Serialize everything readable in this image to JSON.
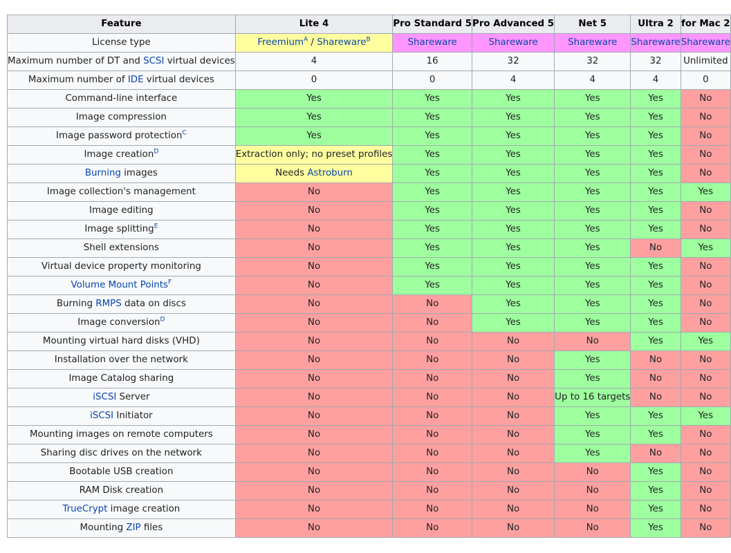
{
  "table": {
    "columns": [
      "Feature",
      "Lite 4",
      "Pro Standard 5",
      "Pro Advanced 5",
      "Net 5",
      "Ultra 2",
      "for Mac 2"
    ],
    "colors": {
      "yes": "#9eff9e",
      "no": "#ffa0a0",
      "partial": "#ffffa0",
      "shareware": "#ff95ff",
      "link": "#0645ad"
    },
    "rows": [
      {
        "feature": [
          {
            "t": "License type"
          }
        ],
        "cells": [
          {
            "s": "partial",
            "parts": [
              {
                "t": "Freemium",
                "link": true
              },
              {
                "t": "A",
                "sup": true
              },
              {
                "t": " / "
              },
              {
                "t": "Shareware",
                "link": true
              },
              {
                "t": "B",
                "sup": true
              }
            ]
          },
          {
            "s": "shareware",
            "parts": [
              {
                "t": "Shareware",
                "link": true
              }
            ]
          },
          {
            "s": "shareware",
            "parts": [
              {
                "t": "Shareware",
                "link": true
              }
            ]
          },
          {
            "s": "shareware",
            "parts": [
              {
                "t": "Shareware",
                "link": true
              }
            ]
          },
          {
            "s": "shareware",
            "parts": [
              {
                "t": "Shareware",
                "link": true
              }
            ]
          },
          {
            "s": "shareware",
            "parts": [
              {
                "t": "Shareware",
                "link": true
              }
            ]
          }
        ]
      },
      {
        "feature": [
          {
            "t": "Maximum number of DT and "
          },
          {
            "t": "SCSI",
            "link": true
          },
          {
            "t": " virtual devices"
          }
        ],
        "cells": [
          {
            "s": "neutral",
            "t": "4"
          },
          {
            "s": "neutral",
            "t": "16"
          },
          {
            "s": "neutral",
            "t": "32"
          },
          {
            "s": "neutral",
            "t": "32"
          },
          {
            "s": "neutral",
            "t": "32"
          },
          {
            "s": "neutral",
            "t": "Unlimited"
          }
        ]
      },
      {
        "feature": [
          {
            "t": "Maximum number of "
          },
          {
            "t": "IDE",
            "link": true
          },
          {
            "t": " virtual devices"
          }
        ],
        "cells": [
          {
            "s": "neutral",
            "t": "0"
          },
          {
            "s": "neutral",
            "t": "0"
          },
          {
            "s": "neutral",
            "t": "4"
          },
          {
            "s": "neutral",
            "t": "4"
          },
          {
            "s": "neutral",
            "t": "4"
          },
          {
            "s": "neutral",
            "t": "0"
          }
        ]
      },
      {
        "feature": [
          {
            "t": "Command-line interface"
          }
        ],
        "cells": [
          {
            "s": "yes",
            "t": "Yes"
          },
          {
            "s": "yes",
            "t": "Yes"
          },
          {
            "s": "yes",
            "t": "Yes"
          },
          {
            "s": "yes",
            "t": "Yes"
          },
          {
            "s": "yes",
            "t": "Yes"
          },
          {
            "s": "no",
            "t": "No"
          }
        ]
      },
      {
        "feature": [
          {
            "t": "Image compression"
          }
        ],
        "cells": [
          {
            "s": "yes",
            "t": "Yes"
          },
          {
            "s": "yes",
            "t": "Yes"
          },
          {
            "s": "yes",
            "t": "Yes"
          },
          {
            "s": "yes",
            "t": "Yes"
          },
          {
            "s": "yes",
            "t": "Yes"
          },
          {
            "s": "no",
            "t": "No"
          }
        ]
      },
      {
        "feature": [
          {
            "t": "Image password protection"
          },
          {
            "t": "C",
            "sup": true
          }
        ],
        "cells": [
          {
            "s": "yes",
            "t": "Yes"
          },
          {
            "s": "yes",
            "t": "Yes"
          },
          {
            "s": "yes",
            "t": "Yes"
          },
          {
            "s": "yes",
            "t": "Yes"
          },
          {
            "s": "yes",
            "t": "Yes"
          },
          {
            "s": "no",
            "t": "No"
          }
        ]
      },
      {
        "feature": [
          {
            "t": "Image creation"
          },
          {
            "t": "D",
            "sup": true
          }
        ],
        "cells": [
          {
            "s": "partial",
            "t": "Extraction only; no preset profiles"
          },
          {
            "s": "yes",
            "t": "Yes"
          },
          {
            "s": "yes",
            "t": "Yes"
          },
          {
            "s": "yes",
            "t": "Yes"
          },
          {
            "s": "yes",
            "t": "Yes"
          },
          {
            "s": "no",
            "t": "No"
          }
        ]
      },
      {
        "feature": [
          {
            "t": "Burning",
            "link": true
          },
          {
            "t": " images"
          }
        ],
        "cells": [
          {
            "s": "partial",
            "parts": [
              {
                "t": "Needs "
              },
              {
                "t": "Astroburn",
                "link": true
              }
            ]
          },
          {
            "s": "yes",
            "t": "Yes"
          },
          {
            "s": "yes",
            "t": "Yes"
          },
          {
            "s": "yes",
            "t": "Yes"
          },
          {
            "s": "yes",
            "t": "Yes"
          },
          {
            "s": "no",
            "t": "No"
          }
        ]
      },
      {
        "feature": [
          {
            "t": "Image collection's management"
          }
        ],
        "cells": [
          {
            "s": "no",
            "t": "No"
          },
          {
            "s": "yes",
            "t": "Yes"
          },
          {
            "s": "yes",
            "t": "Yes"
          },
          {
            "s": "yes",
            "t": "Yes"
          },
          {
            "s": "yes",
            "t": "Yes"
          },
          {
            "s": "yes",
            "t": "Yes"
          }
        ]
      },
      {
        "feature": [
          {
            "t": "Image editing"
          }
        ],
        "cells": [
          {
            "s": "no",
            "t": "No"
          },
          {
            "s": "yes",
            "t": "Yes"
          },
          {
            "s": "yes",
            "t": "Yes"
          },
          {
            "s": "yes",
            "t": "Yes"
          },
          {
            "s": "yes",
            "t": "Yes"
          },
          {
            "s": "no",
            "t": "No"
          }
        ]
      },
      {
        "feature": [
          {
            "t": "Image splitting"
          },
          {
            "t": "E",
            "sup": true
          }
        ],
        "cells": [
          {
            "s": "no",
            "t": "No"
          },
          {
            "s": "yes",
            "t": "Yes"
          },
          {
            "s": "yes",
            "t": "Yes"
          },
          {
            "s": "yes",
            "t": "Yes"
          },
          {
            "s": "yes",
            "t": "Yes"
          },
          {
            "s": "no",
            "t": "No"
          }
        ]
      },
      {
        "feature": [
          {
            "t": "Shell extensions"
          }
        ],
        "cells": [
          {
            "s": "no",
            "t": "No"
          },
          {
            "s": "yes",
            "t": "Yes"
          },
          {
            "s": "yes",
            "t": "Yes"
          },
          {
            "s": "yes",
            "t": "Yes"
          },
          {
            "s": "no",
            "t": "No"
          },
          {
            "s": "yes",
            "t": "Yes"
          }
        ]
      },
      {
        "feature": [
          {
            "t": "Virtual device property monitoring"
          }
        ],
        "cells": [
          {
            "s": "no",
            "t": "No"
          },
          {
            "s": "yes",
            "t": "Yes"
          },
          {
            "s": "yes",
            "t": "Yes"
          },
          {
            "s": "yes",
            "t": "Yes"
          },
          {
            "s": "yes",
            "t": "Yes"
          },
          {
            "s": "no",
            "t": "No"
          }
        ]
      },
      {
        "feature": [
          {
            "t": "Volume Mount Points",
            "link": true
          },
          {
            "t": "F",
            "sup": true
          }
        ],
        "cells": [
          {
            "s": "no",
            "t": "No"
          },
          {
            "s": "yes",
            "t": "Yes"
          },
          {
            "s": "yes",
            "t": "Yes"
          },
          {
            "s": "yes",
            "t": "Yes"
          },
          {
            "s": "yes",
            "t": "Yes"
          },
          {
            "s": "no",
            "t": "No"
          }
        ]
      },
      {
        "feature": [
          {
            "t": "Burning "
          },
          {
            "t": "RMPS",
            "link": true
          },
          {
            "t": " data on discs"
          }
        ],
        "cells": [
          {
            "s": "no",
            "t": "No"
          },
          {
            "s": "no",
            "t": "No"
          },
          {
            "s": "yes",
            "t": "Yes"
          },
          {
            "s": "yes",
            "t": "Yes"
          },
          {
            "s": "yes",
            "t": "Yes"
          },
          {
            "s": "no",
            "t": "No"
          }
        ]
      },
      {
        "feature": [
          {
            "t": "Image conversion"
          },
          {
            "t": "D",
            "sup": true
          }
        ],
        "cells": [
          {
            "s": "no",
            "t": "No"
          },
          {
            "s": "no",
            "t": "No"
          },
          {
            "s": "yes",
            "t": "Yes"
          },
          {
            "s": "yes",
            "t": "Yes"
          },
          {
            "s": "yes",
            "t": "Yes"
          },
          {
            "s": "no",
            "t": "No"
          }
        ]
      },
      {
        "feature": [
          {
            "t": "Mounting virtual hard disks (VHD)"
          }
        ],
        "cells": [
          {
            "s": "no",
            "t": "No"
          },
          {
            "s": "no",
            "t": "No"
          },
          {
            "s": "no",
            "t": "No"
          },
          {
            "s": "no",
            "t": "No"
          },
          {
            "s": "yes",
            "t": "Yes"
          },
          {
            "s": "yes",
            "t": "Yes"
          }
        ]
      },
      {
        "feature": [
          {
            "t": "Installation over the network"
          }
        ],
        "cells": [
          {
            "s": "no",
            "t": "No"
          },
          {
            "s": "no",
            "t": "No"
          },
          {
            "s": "no",
            "t": "No"
          },
          {
            "s": "yes",
            "t": "Yes"
          },
          {
            "s": "no",
            "t": "No"
          },
          {
            "s": "no",
            "t": "No"
          }
        ]
      },
      {
        "feature": [
          {
            "t": "Image Catalog sharing"
          }
        ],
        "cells": [
          {
            "s": "no",
            "t": "No"
          },
          {
            "s": "no",
            "t": "No"
          },
          {
            "s": "no",
            "t": "No"
          },
          {
            "s": "yes",
            "t": "Yes"
          },
          {
            "s": "no",
            "t": "No"
          },
          {
            "s": "no",
            "t": "No"
          }
        ]
      },
      {
        "feature": [
          {
            "t": "iSCSI",
            "link": true
          },
          {
            "t": " Server"
          }
        ],
        "cells": [
          {
            "s": "no",
            "t": "No"
          },
          {
            "s": "no",
            "t": "No"
          },
          {
            "s": "no",
            "t": "No"
          },
          {
            "s": "yes",
            "t": "Up to 16 targets"
          },
          {
            "s": "no",
            "t": "No"
          },
          {
            "s": "no",
            "t": "No"
          }
        ]
      },
      {
        "feature": [
          {
            "t": "iSCSI",
            "link": true
          },
          {
            "t": " Initiator"
          }
        ],
        "cells": [
          {
            "s": "no",
            "t": "No"
          },
          {
            "s": "no",
            "t": "No"
          },
          {
            "s": "no",
            "t": "No"
          },
          {
            "s": "yes",
            "t": "Yes"
          },
          {
            "s": "yes",
            "t": "Yes"
          },
          {
            "s": "yes",
            "t": "Yes"
          }
        ]
      },
      {
        "feature": [
          {
            "t": "Mounting images on remote computers"
          }
        ],
        "cells": [
          {
            "s": "no",
            "t": "No"
          },
          {
            "s": "no",
            "t": "No"
          },
          {
            "s": "no",
            "t": "No"
          },
          {
            "s": "yes",
            "t": "Yes"
          },
          {
            "s": "yes",
            "t": "Yes"
          },
          {
            "s": "no",
            "t": "No"
          }
        ]
      },
      {
        "feature": [
          {
            "t": "Sharing disc drives on the network"
          }
        ],
        "cells": [
          {
            "s": "no",
            "t": "No"
          },
          {
            "s": "no",
            "t": "No"
          },
          {
            "s": "no",
            "t": "No"
          },
          {
            "s": "yes",
            "t": "Yes"
          },
          {
            "s": "no",
            "t": "No"
          },
          {
            "s": "no",
            "t": "No"
          }
        ]
      },
      {
        "feature": [
          {
            "t": "Bootable USB creation"
          }
        ],
        "cells": [
          {
            "s": "no",
            "t": "No"
          },
          {
            "s": "no",
            "t": "No"
          },
          {
            "s": "no",
            "t": "No"
          },
          {
            "s": "no",
            "t": "No"
          },
          {
            "s": "yes",
            "t": "Yes"
          },
          {
            "s": "no",
            "t": "No"
          }
        ]
      },
      {
        "feature": [
          {
            "t": "RAM Disk creation"
          }
        ],
        "cells": [
          {
            "s": "no",
            "t": "No"
          },
          {
            "s": "no",
            "t": "No"
          },
          {
            "s": "no",
            "t": "No"
          },
          {
            "s": "no",
            "t": "No"
          },
          {
            "s": "yes",
            "t": "Yes"
          },
          {
            "s": "no",
            "t": "No"
          }
        ]
      },
      {
        "feature": [
          {
            "t": "TrueCrypt",
            "link": true
          },
          {
            "t": " image creation"
          }
        ],
        "cells": [
          {
            "s": "no",
            "t": "No"
          },
          {
            "s": "no",
            "t": "No"
          },
          {
            "s": "no",
            "t": "No"
          },
          {
            "s": "no",
            "t": "No"
          },
          {
            "s": "yes",
            "t": "Yes"
          },
          {
            "s": "no",
            "t": "No"
          }
        ]
      },
      {
        "feature": [
          {
            "t": "Mounting "
          },
          {
            "t": "ZIP",
            "link": true
          },
          {
            "t": " files"
          }
        ],
        "cells": [
          {
            "s": "no",
            "t": "No"
          },
          {
            "s": "no",
            "t": "No"
          },
          {
            "s": "no",
            "t": "No"
          },
          {
            "s": "no",
            "t": "No"
          },
          {
            "s": "yes",
            "t": "Yes"
          },
          {
            "s": "no",
            "t": "No"
          }
        ]
      }
    ]
  }
}
